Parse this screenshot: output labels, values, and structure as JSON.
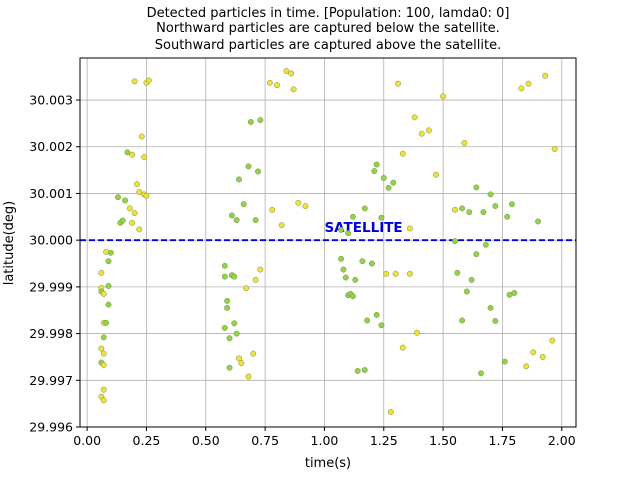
{
  "chart_data": {
    "type": "scatter",
    "title": [
      "Detected particles in time. [Population: 100, lamda0: 0]",
      "Northward particles are captured below the satellite.",
      "Southward particles are captured above the satellite."
    ],
    "xlabel": "time(s)",
    "ylabel": "latitude(deg)",
    "xlim": [
      -0.03,
      2.06
    ],
    "ylim": [
      29.996,
      30.0039
    ],
    "xticks": [
      0.0,
      0.25,
      0.5,
      0.75,
      1.0,
      1.25,
      1.5,
      1.75,
      2.0
    ],
    "xtick_labels": [
      "0.00",
      "0.25",
      "0.50",
      "0.75",
      "1.00",
      "1.25",
      "1.50",
      "1.75",
      "2.00"
    ],
    "yticks": [
      29.996,
      29.997,
      29.998,
      29.999,
      30.0,
      30.001,
      30.002,
      30.003
    ],
    "ytick_labels": [
      "29.996",
      "29.997",
      "29.998",
      "29.999",
      "30.000",
      "30.001",
      "30.002",
      "30.003"
    ],
    "grid": true,
    "reference_line": {
      "y": 30.0,
      "label": "SATELLITE",
      "label_x": 1.0,
      "color": "#0000dd",
      "style": "dashed"
    },
    "colors": {
      "green": "#8fd44a",
      "yellow": "#f0e23c",
      "edge": "#7a8a3a"
    },
    "points": [
      [
        0.2,
        30.0034,
        "y"
      ],
      [
        0.25,
        30.00337,
        "y"
      ],
      [
        0.26,
        30.00342,
        "y"
      ],
      [
        0.17,
        30.00188,
        "g"
      ],
      [
        0.19,
        30.00183,
        "y"
      ],
      [
        0.23,
        30.00222,
        "y"
      ],
      [
        0.24,
        30.00178,
        "y"
      ],
      [
        0.21,
        30.0012,
        "y"
      ],
      [
        0.22,
        30.00103,
        "y"
      ],
      [
        0.24,
        30.00098,
        "y"
      ],
      [
        0.25,
        30.00095,
        "y"
      ],
      [
        0.13,
        30.00092,
        "g"
      ],
      [
        0.16,
        30.00085,
        "g"
      ],
      [
        0.18,
        30.00068,
        "y"
      ],
      [
        0.2,
        30.00058,
        "y"
      ],
      [
        0.14,
        30.00037,
        "g"
      ],
      [
        0.15,
        30.00042,
        "g"
      ],
      [
        0.19,
        30.00037,
        "y"
      ],
      [
        0.22,
        30.00023,
        "y"
      ],
      [
        0.08,
        29.99975,
        "y"
      ],
      [
        0.1,
        29.99973,
        "g"
      ],
      [
        0.09,
        29.99955,
        "g"
      ],
      [
        0.06,
        29.9993,
        "y"
      ],
      [
        0.06,
        29.99898,
        "y"
      ],
      [
        0.06,
        29.9989,
        "g"
      ],
      [
        0.07,
        29.99885,
        "y"
      ],
      [
        0.09,
        29.99902,
        "g"
      ],
      [
        0.09,
        29.99862,
        "g"
      ],
      [
        0.07,
        29.99823,
        "y"
      ],
      [
        0.08,
        29.99823,
        "g"
      ],
      [
        0.07,
        29.99792,
        "g"
      ],
      [
        0.06,
        29.99768,
        "y"
      ],
      [
        0.07,
        29.99757,
        "y"
      ],
      [
        0.06,
        29.99738,
        "g"
      ],
      [
        0.07,
        29.99733,
        "y"
      ],
      [
        0.07,
        29.9968,
        "y"
      ],
      [
        0.06,
        29.99665,
        "y"
      ],
      [
        0.07,
        29.99657,
        "y"
      ],
      [
        0.77,
        30.00337,
        "y"
      ],
      [
        0.8,
        30.00332,
        "y"
      ],
      [
        0.84,
        30.00362,
        "y"
      ],
      [
        0.86,
        30.00357,
        "y"
      ],
      [
        0.87,
        30.00323,
        "y"
      ],
      [
        0.69,
        30.00253,
        "g"
      ],
      [
        0.73,
        30.00257,
        "g"
      ],
      [
        0.68,
        30.00158,
        "g"
      ],
      [
        0.72,
        30.00147,
        "g"
      ],
      [
        0.64,
        30.0013,
        "g"
      ],
      [
        0.66,
        30.00077,
        "g"
      ],
      [
        0.61,
        30.00053,
        "g"
      ],
      [
        0.63,
        30.00043,
        "g"
      ],
      [
        0.71,
        30.00043,
        "g"
      ],
      [
        0.78,
        30.00065,
        "y"
      ],
      [
        0.82,
        30.00032,
        "y"
      ],
      [
        0.89,
        30.0008,
        "y"
      ],
      [
        0.92,
        30.00073,
        "y"
      ],
      [
        0.58,
        29.99945,
        "g"
      ],
      [
        0.58,
        29.99922,
        "g"
      ],
      [
        0.61,
        29.99925,
        "g"
      ],
      [
        0.62,
        29.99922,
        "g"
      ],
      [
        0.73,
        29.99937,
        "y"
      ],
      [
        0.71,
        29.99915,
        "y"
      ],
      [
        0.67,
        29.99897,
        "y"
      ],
      [
        0.59,
        29.9987,
        "g"
      ],
      [
        0.59,
        29.99855,
        "g"
      ],
      [
        0.62,
        29.99822,
        "g"
      ],
      [
        0.58,
        29.99812,
        "g"
      ],
      [
        0.63,
        29.998,
        "g"
      ],
      [
        0.6,
        29.9979,
        "g"
      ],
      [
        0.64,
        29.99747,
        "y"
      ],
      [
        0.65,
        29.99737,
        "y"
      ],
      [
        0.7,
        29.99757,
        "y"
      ],
      [
        0.6,
        29.99727,
        "g"
      ],
      [
        0.68,
        29.99708,
        "y"
      ],
      [
        1.31,
        30.00335,
        "y"
      ],
      [
        1.38,
        30.00263,
        "y"
      ],
      [
        1.41,
        30.00228,
        "y"
      ],
      [
        1.44,
        30.00235,
        "y"
      ],
      [
        1.33,
        30.00185,
        "y"
      ],
      [
        1.22,
        30.00162,
        "g"
      ],
      [
        1.27,
        30.00112,
        "g"
      ],
      [
        1.29,
        30.00123,
        "g"
      ],
      [
        1.21,
        30.00148,
        "g"
      ],
      [
        1.25,
        30.00133,
        "g"
      ],
      [
        1.17,
        30.00068,
        "g"
      ],
      [
        1.24,
        30.00048,
        "g"
      ],
      [
        1.12,
        30.0005,
        "g"
      ],
      [
        1.07,
        30.00022,
        "g"
      ],
      [
        1.1,
        30.00015,
        "g"
      ],
      [
        1.36,
        30.00025,
        "y"
      ],
      [
        1.5,
        30.00308,
        "y"
      ],
      [
        1.47,
        30.0014,
        "y"
      ],
      [
        1.07,
        29.9996,
        "g"
      ],
      [
        1.16,
        29.99955,
        "g"
      ],
      [
        1.2,
        29.9995,
        "g"
      ],
      [
        1.08,
        29.99937,
        "g"
      ],
      [
        1.09,
        29.9992,
        "g"
      ],
      [
        1.13,
        29.99915,
        "g"
      ],
      [
        1.26,
        29.99928,
        "y"
      ],
      [
        1.3,
        29.99928,
        "y"
      ],
      [
        1.36,
        29.99928,
        "y"
      ],
      [
        1.1,
        29.99882,
        "g"
      ],
      [
        1.11,
        29.99885,
        "g"
      ],
      [
        1.12,
        29.9988,
        "g"
      ],
      [
        1.18,
        29.99828,
        "g"
      ],
      [
        1.22,
        29.9984,
        "g"
      ],
      [
        1.24,
        29.99818,
        "g"
      ],
      [
        1.39,
        29.99802,
        "y"
      ],
      [
        1.33,
        29.9977,
        "y"
      ],
      [
        1.14,
        29.9972,
        "g"
      ],
      [
        1.17,
        29.99722,
        "g"
      ],
      [
        1.28,
        29.99632,
        "y"
      ],
      [
        1.93,
        30.00352,
        "y"
      ],
      [
        1.86,
        30.00335,
        "y"
      ],
      [
        1.83,
        30.00325,
        "y"
      ],
      [
        1.59,
        30.00208,
        "y"
      ],
      [
        1.97,
        30.00195,
        "y"
      ],
      [
        1.64,
        30.00113,
        "g"
      ],
      [
        1.7,
        30.00098,
        "g"
      ],
      [
        1.72,
        30.00073,
        "g"
      ],
      [
        1.79,
        30.00077,
        "g"
      ],
      [
        1.55,
        30.00065,
        "y"
      ],
      [
        1.58,
        30.00068,
        "g"
      ],
      [
        1.61,
        30.0006,
        "g"
      ],
      [
        1.67,
        30.0006,
        "g"
      ],
      [
        1.77,
        30.0005,
        "g"
      ],
      [
        1.9,
        30.0004,
        "g"
      ],
      [
        1.55,
        29.99998,
        "g"
      ],
      [
        1.68,
        29.9999,
        "g"
      ],
      [
        1.64,
        29.9997,
        "g"
      ],
      [
        1.56,
        29.9993,
        "g"
      ],
      [
        1.62,
        29.99915,
        "g"
      ],
      [
        1.6,
        29.9989,
        "g"
      ],
      [
        1.78,
        29.99883,
        "g"
      ],
      [
        1.8,
        29.99887,
        "g"
      ],
      [
        1.7,
        29.99855,
        "g"
      ],
      [
        1.72,
        29.99827,
        "g"
      ],
      [
        1.58,
        29.99828,
        "g"
      ],
      [
        1.96,
        29.99785,
        "y"
      ],
      [
        1.88,
        29.9976,
        "y"
      ],
      [
        1.92,
        29.9975,
        "y"
      ],
      [
        1.76,
        29.9974,
        "g"
      ],
      [
        1.85,
        29.9973,
        "y"
      ],
      [
        1.66,
        29.99715,
        "g"
      ]
    ]
  }
}
